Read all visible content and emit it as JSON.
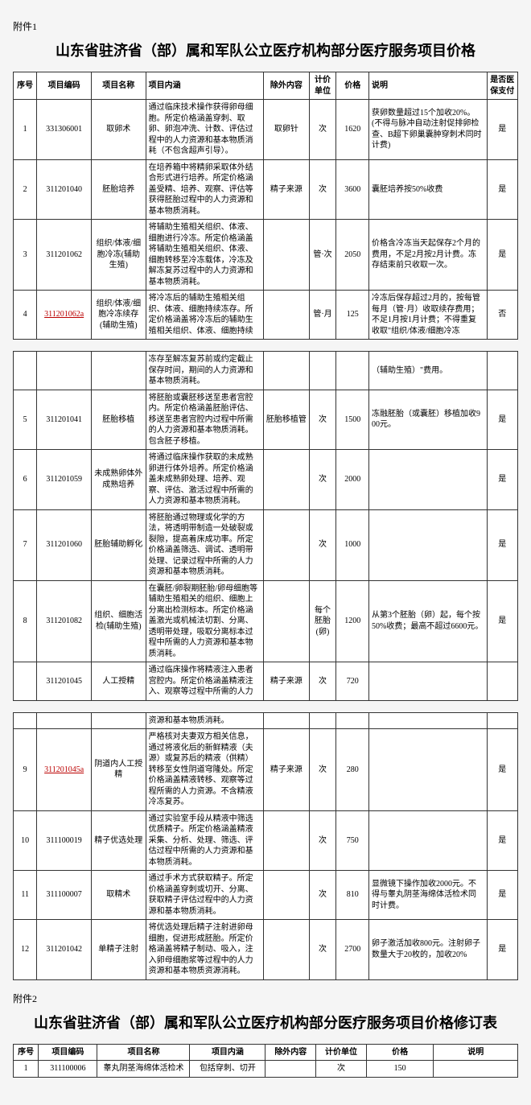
{
  "attachment1": {
    "label": "附件1",
    "title": "山东省驻济省（部）属和军队公立医疗机构部分医疗服务项目价格",
    "headers": [
      "序号",
      "项目编码",
      "项目名称",
      "项目内涵",
      "除外内容",
      "计价单位",
      "价格",
      "说明",
      "是否医保支付"
    ],
    "groups": [
      {
        "rows": [
          {
            "seq": "1",
            "code": "331306001",
            "code_red": false,
            "name": "取卵术",
            "desc": "通过临床技术操作获得卵母细胞。所定价格涵盖穿刺、取卵、卵泡冲洗、计数、评估过程中的人力资源和基本物质消耗（不包含超声引导）。",
            "excl": "取卵针",
            "unit": "次",
            "price": "1620",
            "note": "获卵数量超过15个加收20%。(不得与脉冲自动注射促排卵检查、B超下卵巢囊肿穿刺术同时计费)",
            "ins": "是"
          },
          {
            "seq": "2",
            "code": "311201040",
            "code_red": false,
            "name": "胚胎培养",
            "desc": "在培养箱中将精卵采取体外结合形式进行培养。所定价格涵盖受精、培养、观察、评估等获得胚胎过程中的人力资源和基本物质消耗。",
            "excl": "精子来源",
            "unit": "次",
            "price": "3600",
            "note": "囊胚培养按50%收费",
            "ins": "是"
          },
          {
            "seq": "3",
            "code": "311201062",
            "code_red": false,
            "name": "组织/体液/细胞冷冻(辅助生殖)",
            "desc": "将辅助生殖相关组织、体液、细胞进行冷冻。所定价格涵盖将辅助生殖相关组织、体液、细胞转移至冷冻载体，冷冻及解冻复苏过程中的人力资源和基本物质消耗。",
            "excl": "",
            "unit": "管·次",
            "price": "2050",
            "note": "价格含冷冻当天起保存2个月的费用，不足2月按2月计费。冻存结束前只收取一次。",
            "ins": "是"
          },
          {
            "seq": "4",
            "code": "311201062a",
            "code_red": true,
            "name": "组织/体液/细胞冷冻续存(辅助生殖)",
            "desc": "将冷冻后的辅助生殖相关组织、体液、细胞持续冻存。所定价格涵盖将冷冻后的辅助生殖相关组织、体液、细胞持续",
            "excl": "",
            "unit": "管·月",
            "price": "125",
            "note": "冷冻后保存超过2月的，按每管每月（管·月）收取续存费用；不足1月按1月计费；不得重复收取\"组织/体液/细胞冷冻",
            "ins": "否"
          }
        ]
      },
      {
        "rows": [
          {
            "seq": "",
            "code": "",
            "code_red": false,
            "name": "",
            "desc": "冻存至解冻复苏前或约定截止保存时间，期间的人力资源和基本物质消耗。",
            "excl": "",
            "unit": "",
            "price": "",
            "note": "（辅助生殖）\"费用。",
            "ins": ""
          },
          {
            "seq": "5",
            "code": "311201041",
            "code_red": false,
            "name": "胚胎移植",
            "desc": "将胚胎或囊胚移送至患者宫腔内。所定价格涵盖胚胎评估、移送至患者宫腔内过程中所需的人力资源和基本物质消耗。包含胚子移植。",
            "excl": "胚胎移植管",
            "unit": "次",
            "price": "1500",
            "note": "冻融胚胎（或囊胚）移植加收900元。",
            "ins": "是"
          },
          {
            "seq": "6",
            "code": "311201059",
            "code_red": false,
            "name": "未成熟卵体外成熟培养",
            "desc": "将通过临床操作获取的未成熟卵进行体外培养。所定价格涵盖未成熟卵处理、培养、观察、评估、激活过程中所需的人力资源和基本物质消耗。",
            "excl": "",
            "unit": "次",
            "price": "2000",
            "note": "",
            "ins": "是"
          },
          {
            "seq": "7",
            "code": "311201060",
            "code_red": false,
            "name": "胚胎辅助孵化",
            "desc": "将胚胎通过物理或化学的方法，将透明带制造一处破裂或裂隙，提高着床成功率。所定价格涵盖筛选、调试、透明带处理、记录过程中所需的人力资源和基本物质消耗。",
            "excl": "",
            "unit": "次",
            "price": "1000",
            "note": "",
            "ins": "是"
          },
          {
            "seq": "8",
            "code": "311201082",
            "code_red": false,
            "name": "组织、细胞活检(辅助生殖)",
            "desc": "在囊胚/卵裂期胚胎/卵母细胞等辅助生殖相关的组织、细胞上分离出检测标本。所定价格涵盖激光或机械法切割、分离、透明带处理，吸取分离标本过程中所需的人力资源和基本物质消耗。",
            "excl": "",
            "unit": "每个胚胎(卵)",
            "price": "1200",
            "note": "从第3个胚胎（卵）起，每个按50%收费；最高不超过6600元。",
            "ins": "是"
          },
          {
            "seq": "",
            "code": "311201045",
            "code_red": false,
            "name": "人工授精",
            "desc": "通过临床操作将精液注入患者宫腔内。所定价格涵盖精液注入、观察等过程中所需的人力",
            "excl": "精子来源",
            "unit": "次",
            "price": "720",
            "note": "",
            "ins": ""
          }
        ]
      },
      {
        "rows": [
          {
            "seq": "",
            "code": "",
            "code_red": false,
            "name": "",
            "desc": "资源和基本物质消耗。",
            "excl": "",
            "unit": "",
            "price": "",
            "note": "",
            "ins": ""
          },
          {
            "seq": "9",
            "code": "311201045a",
            "code_red": true,
            "name": "阴道内人工授精",
            "desc": "严格核对夫妻双方相关信息，通过将液化后的新鲜精液（夫源）或复苏后的精液（供精）转移至女性阴道穹隆处。所定价格涵盖精液转移、观察等过程所需的人力资源。不含精液冷冻复苏。",
            "excl": "精子来源",
            "unit": "次",
            "price": "280",
            "note": "",
            "ins": "是"
          },
          {
            "seq": "10",
            "code": "311100019",
            "code_red": false,
            "name": "精子优选处理",
            "desc": "通过实验室手段从精液中筛选优质精子。所定价格涵盖精液采集、分析、处理、筛选、评估过程中所需的人力资源和基本物质消耗。",
            "excl": "",
            "unit": "次",
            "price": "750",
            "note": "",
            "ins": "是"
          },
          {
            "seq": "11",
            "code": "311100007",
            "code_red": false,
            "name": "取精术",
            "desc": "通过手术方式获取精子。所定价格涵盖穿刺或切开、分离、获取精子评估过程中的人力资源和基本物质消耗。",
            "excl": "",
            "unit": "次",
            "price": "810",
            "note": "显微镜下操作加收2000元。不得与睾丸阴茎海绵体活检术同时计费。",
            "ins": "是"
          },
          {
            "seq": "12",
            "code": "311201042",
            "code_red": false,
            "name": "单精子注射",
            "desc": "将优选处理后精子注射进卵母细胞，促进形成胚胎。所定价格涵盖将精子制动、吸入，注入卵母细胞浆等过程中的人力资源和基本物质资源消耗。",
            "excl": "",
            "unit": "次",
            "price": "2700",
            "note": "卵子激活加收800元。注射卵子数量大于20枚的，加收20%",
            "ins": "是"
          }
        ]
      }
    ]
  },
  "attachment2": {
    "label": "附件2",
    "title": "山东省驻济省（部）属和军队公立医疗机构部分医疗服务项目价格修订表",
    "headers": [
      "序号",
      "项目编码",
      "项目名称",
      "项目内涵",
      "除外内容",
      "计价单位",
      "价格",
      "说明"
    ],
    "rows": [
      {
        "seq": "1",
        "code": "311100006",
        "name": "睾丸阴茎海绵体活检术",
        "desc": "包括穿刺、切开",
        "excl": "",
        "unit": "次",
        "price": "150",
        "note": ""
      }
    ]
  }
}
